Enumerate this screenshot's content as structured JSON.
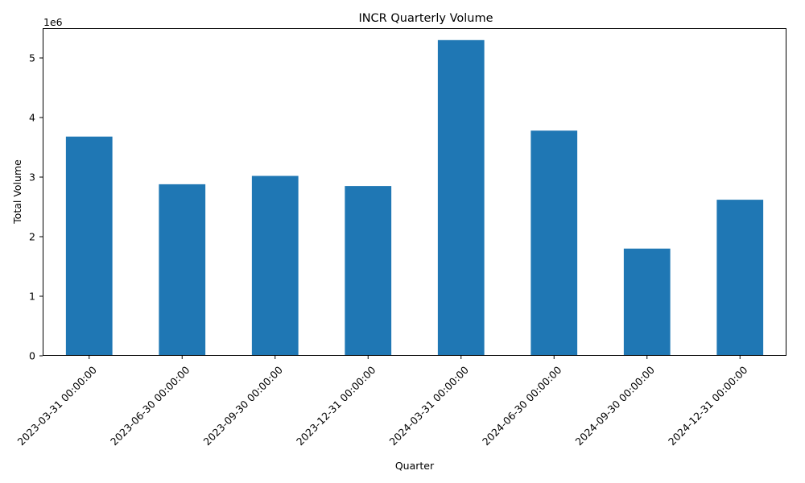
{
  "chart_data": {
    "type": "bar",
    "title": "INCR Quarterly Volume",
    "xlabel": "Quarter",
    "ylabel": "Total Volume",
    "y_offset_label": "1e6",
    "y_scale": 1000000,
    "ylim": [
      0,
      5.5
    ],
    "yticks": [
      0,
      1,
      2,
      3,
      4,
      5
    ],
    "grid": false,
    "legend": "none",
    "bar_color": "#1f77b4",
    "categories": [
      "2023-03-31 00:00:00",
      "2023-06-30 00:00:00",
      "2023-09-30 00:00:00",
      "2023-12-31 00:00:00",
      "2024-03-31 00:00:00",
      "2024-06-30 00:00:00",
      "2024-09-30 00:00:00",
      "2024-12-31 00:00:00"
    ],
    "values": [
      3680000,
      2880000,
      3020000,
      2850000,
      5300000,
      3780000,
      1800000,
      2620000
    ]
  }
}
